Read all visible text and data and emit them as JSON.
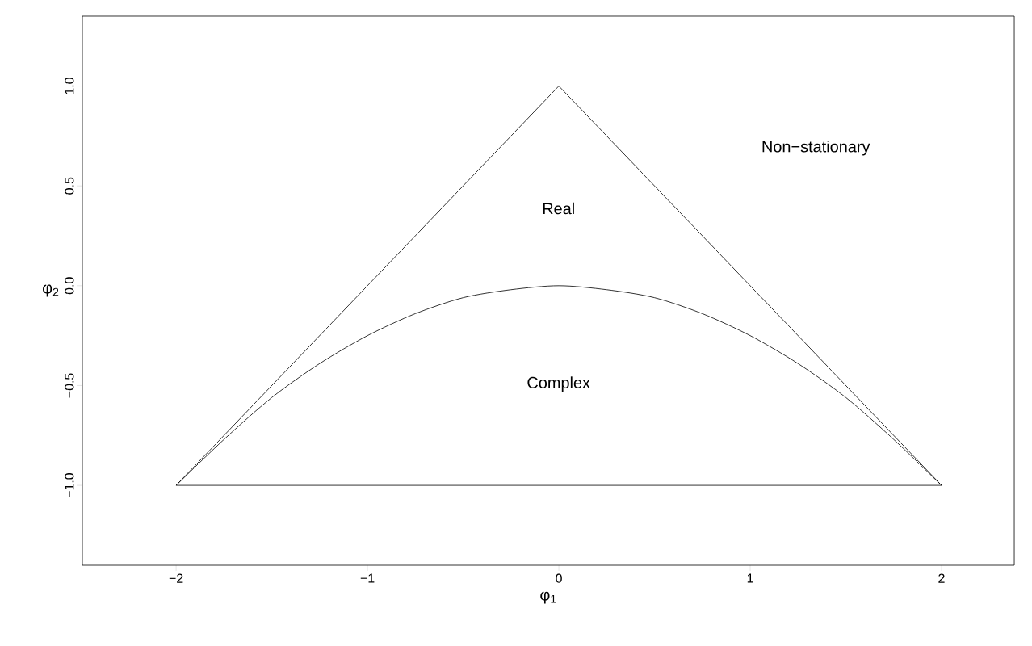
{
  "chart_data": {
    "type": "line",
    "xlabel": "φ$_{1}$",
    "ylabel": "φ$_{2}$",
    "xlim": [
      -2.49,
      2.38
    ],
    "ylim": [
      -1.4,
      1.35
    ],
    "xticks": [
      {
        "value": -2,
        "label": "−2"
      },
      {
        "value": -1,
        "label": "−1"
      },
      0,
      1,
      2
    ],
    "yticks": [
      {
        "value": -1,
        "label": "−1.0"
      },
      {
        "value": -0.5,
        "label": "−0.5"
      },
      {
        "value": 0,
        "label": "0.0"
      },
      {
        "value": 0.5,
        "label": "0.5"
      },
      {
        "value": 1,
        "label": "1.0"
      }
    ],
    "grid": false,
    "marker": "none",
    "line_style": "solid",
    "series": [
      {
        "color": "#000000",
        "x": [
          -2,
          0,
          2
        ],
        "values": [
          -1,
          1,
          -1
        ]
      },
      {
        "color": "#000000",
        "x": [
          -2,
          2
        ],
        "values": [
          -1,
          -1
        ]
      },
      {
        "color": "#000000",
        "x": [
          -2,
          -1.75,
          -1.5,
          -1.25,
          -1,
          -0.75,
          -0.5,
          -0.25,
          0,
          0.25,
          0.5,
          0.75,
          1,
          1.25,
          1.5,
          1.75,
          2
        ],
        "values": [
          -1,
          -0.77,
          -0.56,
          -0.39,
          -0.25,
          -0.14,
          -0.06,
          -0.02,
          0,
          -0.02,
          -0.06,
          -0.14,
          -0.25,
          -0.39,
          -0.56,
          -0.77,
          -1
        ]
      }
    ],
    "annotations": [
      "Non−stationary",
      "Real",
      "Complex"
    ]
  }
}
